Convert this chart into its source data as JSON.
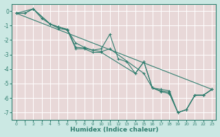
{
  "title": "",
  "xlabel": "Humidex (Indice chaleur)",
  "ylabel": "",
  "background_color": "#cbe8e3",
  "plot_bg_color": "#e8d8d8",
  "grid_color": "#ffffff",
  "line_color": "#2e7d6e",
  "xlim": [
    -0.5,
    23.5
  ],
  "ylim": [
    -7.5,
    0.5
  ],
  "yticks": [
    0,
    -1,
    -2,
    -3,
    -4,
    -5,
    -6,
    -7
  ],
  "xticks": [
    0,
    1,
    2,
    3,
    4,
    5,
    6,
    7,
    8,
    9,
    10,
    11,
    12,
    13,
    14,
    15,
    16,
    17,
    18,
    19,
    20,
    21,
    22,
    23
  ],
  "series": [
    {
      "x": [
        0,
        1,
        2,
        3,
        4,
        5,
        6,
        7,
        8,
        9,
        10,
        11,
        12,
        13,
        14,
        15,
        16,
        17,
        18,
        19,
        20,
        21,
        22,
        23
      ],
      "y": [
        -0.15,
        -0.15,
        0.15,
        -0.5,
        -0.9,
        -1.1,
        -1.3,
        -2.2,
        -2.5,
        -2.7,
        -2.6,
        -1.6,
        -3.3,
        -3.5,
        -4.3,
        -3.5,
        -5.3,
        -5.4,
        -5.5,
        -7.0,
        -6.8,
        -5.8,
        -5.8,
        -5.4
      ]
    },
    {
      "x": [
        0,
        1,
        2,
        4,
        5,
        6,
        7,
        8,
        9,
        10,
        11,
        15,
        16,
        17,
        18,
        19,
        20,
        21,
        22,
        23
      ],
      "y": [
        -0.15,
        -0.15,
        0.15,
        -0.9,
        -1.1,
        -1.25,
        -2.5,
        -2.55,
        -2.7,
        -2.8,
        -2.6,
        -4.3,
        -5.3,
        -5.5,
        -5.6,
        -7.0,
        -6.8,
        -5.8,
        -5.8,
        -5.4
      ]
    },
    {
      "x": [
        0,
        2,
        4,
        5,
        6,
        7,
        8,
        9,
        10,
        14,
        15,
        16,
        17,
        18,
        19,
        20,
        21,
        22,
        23
      ],
      "y": [
        -0.15,
        0.15,
        -0.9,
        -1.2,
        -1.3,
        -2.6,
        -2.6,
        -2.85,
        -2.85,
        -4.3,
        -3.5,
        -5.3,
        -5.55,
        -5.7,
        -7.0,
        -6.8,
        -5.8,
        -5.8,
        -5.4
      ]
    },
    {
      "x": [
        0,
        23
      ],
      "y": [
        -0.15,
        -5.4
      ],
      "no_marker": true
    }
  ]
}
